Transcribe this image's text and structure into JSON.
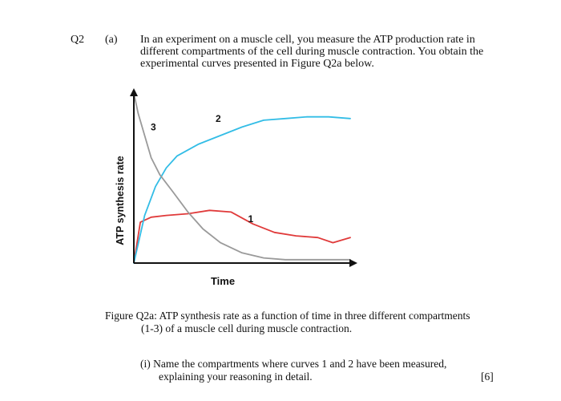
{
  "question": {
    "number": "Q2",
    "part": "(a)",
    "intro_lines": [
      "In an experiment on a muscle cell, you measure the ATP production rate in",
      "different compartments of the cell during muscle contraction. You obtain the",
      "experimental curves presented in Figure Q2a below."
    ]
  },
  "figure": {
    "caption_lines": [
      "Figure Q2a: ATP synthesis rate as a function of time in three different compartments",
      "(1-3) of a muscle cell during muscle contraction."
    ]
  },
  "subquestion": {
    "label": "(i)",
    "lines": [
      "Name the compartments where curves 1 and 2 have been measured,",
      "explaining your reasoning in detail."
    ],
    "marks": "[6]"
  },
  "chart_data": {
    "type": "line",
    "title": "",
    "xlabel": "Time",
    "ylabel": "ATP synthesis rate",
    "xlim": [
      0,
      100
    ],
    "ylim": [
      0,
      100
    ],
    "grid": false,
    "legend": "none",
    "series": [
      {
        "name": "1",
        "color": "#e03a3a",
        "x": [
          0,
          3,
          8,
          15,
          25,
          35,
          45,
          55,
          65,
          75,
          85,
          92,
          100
        ],
        "y": [
          0,
          24,
          27,
          28,
          29,
          31,
          30,
          23,
          18,
          16,
          15,
          12,
          15
        ]
      },
      {
        "name": "2",
        "color": "#33bde6",
        "x": [
          0,
          5,
          10,
          15,
          20,
          30,
          40,
          50,
          60,
          70,
          80,
          90,
          100
        ],
        "y": [
          0,
          28,
          45,
          56,
          63,
          70,
          75,
          80,
          84,
          85,
          86,
          86,
          85
        ]
      },
      {
        "name": "3",
        "color": "#9a9a9a",
        "x": [
          0,
          2,
          5,
          8,
          12,
          18,
          25,
          32,
          40,
          50,
          60,
          70,
          80,
          90,
          100
        ],
        "y": [
          100,
          88,
          75,
          62,
          52,
          42,
          30,
          20,
          12,
          6,
          3,
          2,
          2,
          2,
          2
        ]
      }
    ],
    "labels": [
      {
        "text": "3",
        "x": 9,
        "y": 78
      },
      {
        "text": "2",
        "x": 39,
        "y": 83
      },
      {
        "text": "1",
        "x": 54,
        "y": 24
      }
    ]
  }
}
